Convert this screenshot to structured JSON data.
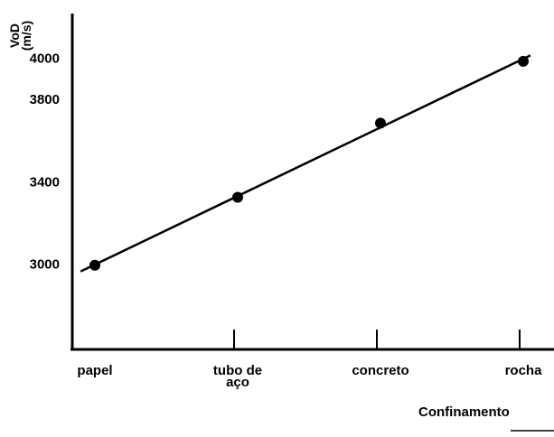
{
  "chart_data": {
    "type": "line",
    "y_label": "VoD (m/s)",
    "x_label": "Confinamento",
    "categories": [
      "papel",
      "tubo de aço",
      "concreto",
      "rocha"
    ],
    "values": [
      3000,
      3330,
      3690,
      3990
    ],
    "color": "#000000",
    "ylim": [
      2600,
      4200
    ],
    "yticks": [
      3000,
      3400,
      3800,
      4000
    ],
    "trendline": true
  }
}
